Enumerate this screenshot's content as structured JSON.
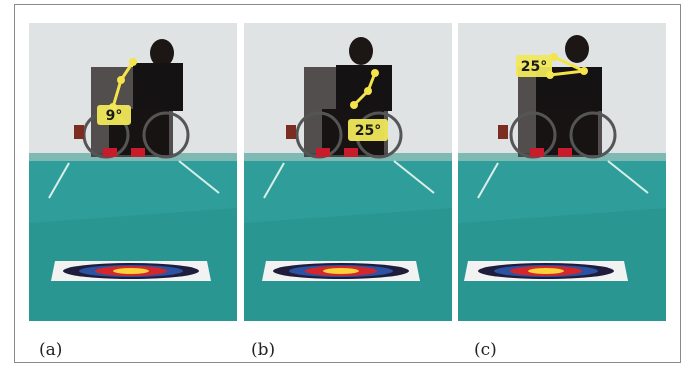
{
  "panels": [
    {
      "caption": "(a)",
      "angle_label": "9°"
    },
    {
      "caption": "(b)",
      "angle_label": "25°"
    },
    {
      "caption": "(c)",
      "angle_label": "25°"
    }
  ],
  "colors": {
    "wall": "#dfe3e4",
    "floor": "#2f9e9a",
    "floor_dark": "#1f7f7d",
    "marker": "#f4e34a",
    "label_bg": "#f0e85a"
  },
  "icons": [
    "archery-target",
    "wheelchair-athlete",
    "angle-marker"
  ]
}
